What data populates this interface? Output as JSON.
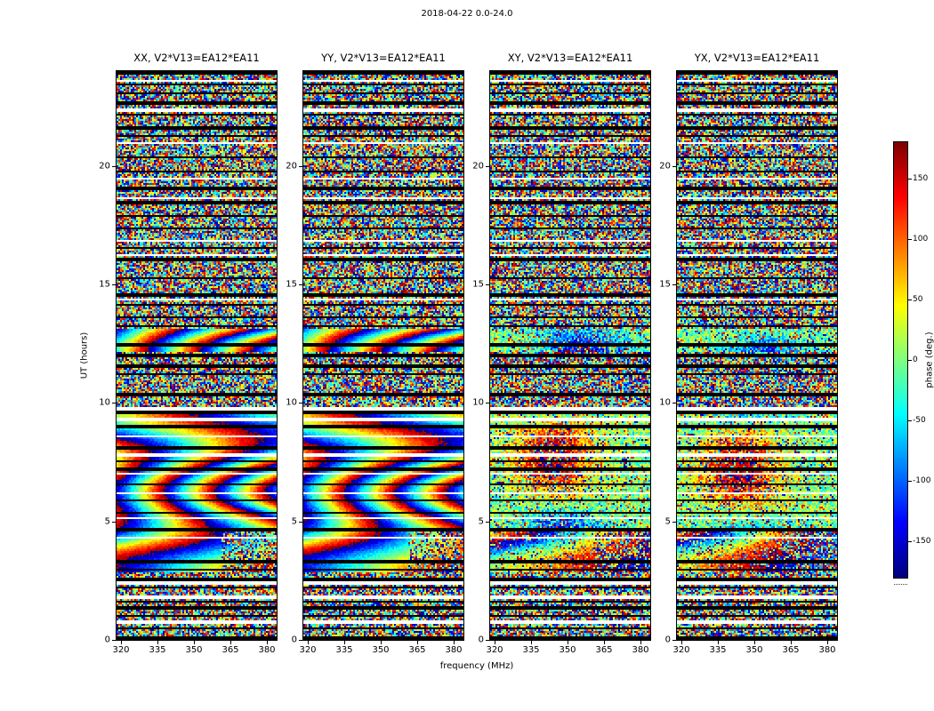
{
  "chart_data": {
    "type": "heatmap",
    "title": "2018-04-22 0.0-24.0",
    "xlabel": "frequency (MHz)",
    "ylabel": "UT (hours)",
    "x_ticks": [
      "320",
      "335",
      "350",
      "365",
      "380"
    ],
    "y_ticks": [
      "0",
      "5",
      "10",
      "15",
      "20"
    ],
    "x_range": [
      318,
      384
    ],
    "y_range": [
      0,
      24
    ],
    "grid": false,
    "panels": [
      {
        "label": "XX, V2*V13=EA12*EA11",
        "mode": "sweep"
      },
      {
        "label": "YY, V2*V13=EA12*EA11",
        "mode": "sweep"
      },
      {
        "label": "XY, V2*V13=EA12*EA11",
        "mode": "blob"
      },
      {
        "label": "YX, V2*V13=EA12*EA11",
        "mode": "blob"
      }
    ],
    "colorbar": {
      "label": "phase (deg.)",
      "ticks": [
        "150",
        "100",
        "50",
        "0",
        "-50",
        "-100",
        "-150"
      ],
      "vmin": -180,
      "vmax": 180,
      "colormap": "jet"
    },
    "bands": [
      {
        "t0": 2.85,
        "t1": 4.55
      },
      {
        "t0": 4.75,
        "t1": 9.55
      },
      {
        "t0": 12.15,
        "t1": 13.1
      }
    ],
    "flagged_black": [
      [
        0.06,
        0.12
      ],
      [
        0.5,
        0.04
      ],
      [
        1.02,
        0.04
      ],
      [
        1.35,
        0.04
      ],
      [
        1.6,
        0.04
      ],
      [
        2.2,
        0.06
      ],
      [
        2.55,
        0.04
      ],
      [
        2.95,
        0.05
      ],
      [
        3.3,
        0.04
      ],
      [
        4.65,
        0.1
      ],
      [
        5.35,
        0.04
      ],
      [
        5.9,
        0.04
      ],
      [
        6.55,
        0.06
      ],
      [
        7.2,
        0.04
      ],
      [
        7.55,
        0.04
      ],
      [
        8.1,
        0.05
      ],
      [
        9.0,
        0.04
      ],
      [
        9.6,
        0.06
      ],
      [
        10.35,
        0.04
      ],
      [
        11.2,
        0.05
      ],
      [
        11.55,
        0.04
      ],
      [
        12.0,
        0.05
      ],
      [
        12.45,
        0.04
      ],
      [
        13.25,
        0.06
      ],
      [
        13.6,
        0.04
      ],
      [
        14.15,
        0.05
      ],
      [
        14.55,
        0.04
      ],
      [
        15.25,
        0.05
      ],
      [
        16.05,
        0.04
      ],
      [
        16.55,
        0.04
      ],
      [
        17.35,
        0.05
      ],
      [
        17.9,
        0.04
      ],
      [
        18.45,
        0.05
      ],
      [
        19.05,
        0.04
      ],
      [
        19.75,
        0.04
      ],
      [
        20.35,
        0.05
      ],
      [
        21.25,
        0.06
      ],
      [
        21.6,
        0.04
      ],
      [
        22.15,
        0.05
      ],
      [
        22.65,
        0.04
      ],
      [
        23.05,
        0.04
      ],
      [
        23.45,
        0.05
      ],
      [
        23.95,
        0.08
      ]
    ],
    "flagged_white": [
      [
        0.75,
        0.04
      ],
      [
        1.8,
        0.04
      ],
      [
        2.4,
        0.04
      ],
      [
        4.3,
        0.04
      ],
      [
        5.15,
        0.04
      ],
      [
        6.2,
        0.04
      ],
      [
        7.0,
        0.04
      ],
      [
        7.8,
        0.04
      ],
      [
        8.6,
        0.04
      ],
      [
        9.3,
        0.04
      ],
      [
        9.75,
        0.05
      ],
      [
        14.35,
        0.04
      ],
      [
        16.25,
        0.04
      ],
      [
        16.85,
        0.04
      ],
      [
        18.65,
        0.04
      ],
      [
        19.45,
        0.04
      ],
      [
        20.95,
        0.04
      ],
      [
        22.35,
        0.04
      ],
      [
        23.6,
        0.04
      ]
    ]
  }
}
